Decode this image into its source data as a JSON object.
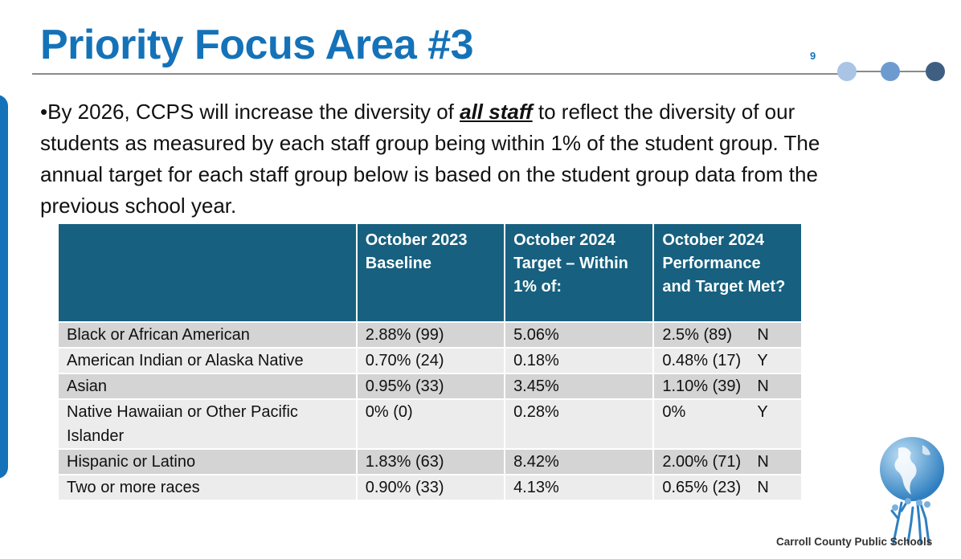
{
  "slide": {
    "title": "Priority Focus Area #3",
    "page_number": "9",
    "bullet_marker": "•",
    "bullet_text_before": "By 2026, CCPS will increase the diversity of ",
    "bullet_emphasis": "all staff",
    "bullet_text_after": " to reflect the diversity of our students as measured by each staff group being within 1% of the student group. The annual target for each staff group below is based on the student group data from the previous school year.",
    "footer": "Carroll County Public Schools"
  },
  "table": {
    "headers": [
      "",
      "October 2023 Baseline",
      "October 2024 Target – Within 1% of:",
      "October 2024 Performance and Target Met?"
    ],
    "rows": [
      {
        "group": "Black or African American",
        "baseline": "2.88% (99)",
        "target": "5.06%",
        "performance": "2.5% (89)",
        "met": "N"
      },
      {
        "group": "American Indian or Alaska Native",
        "baseline": "0.70% (24)",
        "target": "0.18%",
        "performance": "0.48% (17)",
        "met": "Y"
      },
      {
        "group": "Asian",
        "baseline": "0.95% (33)",
        "target": "3.45%",
        "performance": "1.10% (39)",
        "met": "N"
      },
      {
        "group": "Native Hawaiian or Other Pacific Islander",
        "baseline": "0% (0)",
        "target": "0.28%",
        "performance": "0%",
        "met": "Y"
      },
      {
        "group": "Hispanic or Latino",
        "baseline": "1.83% (63)",
        "target": "8.42%",
        "performance": "2.00% (71)",
        "met": "N"
      },
      {
        "group": "Two or more races",
        "baseline": "0.90% (33)",
        "target": "4.13%",
        "performance": "0.65% (23)",
        "met": "N"
      }
    ]
  },
  "colors": {
    "title": "#1472b8",
    "header_bg": "#17607f",
    "row_odd": "#d4d4d4",
    "row_even": "#ececec"
  },
  "icons": {
    "progress_dots": "progress-dots-icon",
    "logo": "globe-logo-icon"
  }
}
